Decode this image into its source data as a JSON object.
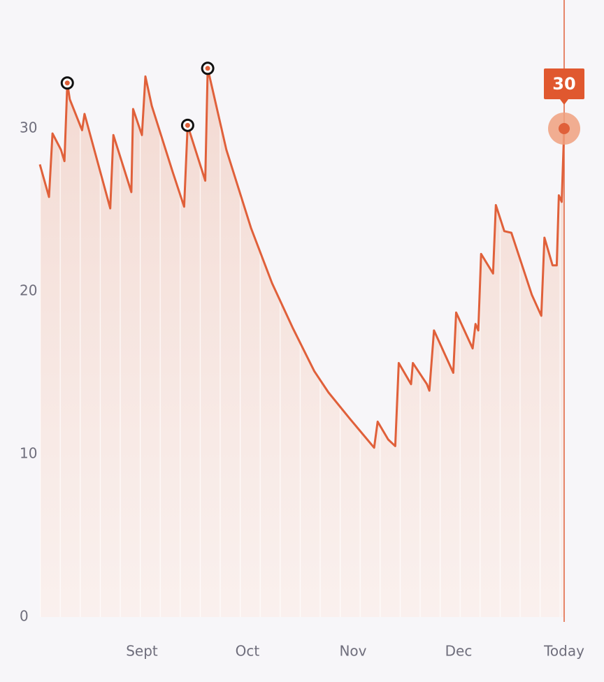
{
  "chart_data": {
    "type": "line",
    "x": [
      0,
      2.6,
      3.6,
      6,
      7,
      7.8,
      8.5,
      12,
      12.7,
      20,
      20.9,
      26,
      26.5,
      29,
      30,
      31.8,
      37.8,
      41,
      42,
      47,
      47.7,
      53,
      60,
      66,
      72,
      78,
      82,
      88,
      95,
      96,
      99,
      101,
      102,
      105.5,
      106,
      110,
      110.7,
      112,
      117.5,
      118.3,
      123,
      123.8,
      124.6,
      125.4,
      128.8,
      129.6,
      132,
      134,
      139.8,
      142.5,
      143.4,
      145.7,
      146.9,
      147.5,
      148.3,
      149
    ],
    "y": [
      27.8,
      25.8,
      29.7,
      28.7,
      28.0,
      32.8,
      31.8,
      29.9,
      30.9,
      25.1,
      29.6,
      26.1,
      31.2,
      29.6,
      33.2,
      31.4,
      27.3,
      25.2,
      30.2,
      26.8,
      33.7,
      28.7,
      23.9,
      20.5,
      17.7,
      15.1,
      13.8,
      12.2,
      10.4,
      12.0,
      10.9,
      10.5,
      15.6,
      14.3,
      15.6,
      14.3,
      13.9,
      17.6,
      15.0,
      18.7,
      16.5,
      18.0,
      17.6,
      22.3,
      21.1,
      25.3,
      23.7,
      23.6,
      19.8,
      18.5,
      23.3,
      21.6,
      21.6,
      25.9,
      25.5,
      30
    ],
    "color": "#e0603a",
    "marked_points": [
      5,
      18,
      20
    ],
    "xlim": [
      0,
      149
    ],
    "ylim": [
      0,
      38
    ],
    "xticks": [
      {
        "value": 29,
        "label": "Sept"
      },
      {
        "value": 59,
        "label": "Oct"
      },
      {
        "value": 89,
        "label": "Nov"
      },
      {
        "value": 119,
        "label": "Dec"
      },
      {
        "value": 149,
        "label": "Today"
      }
    ],
    "yticks": [
      0,
      10,
      20,
      30
    ]
  }
}
